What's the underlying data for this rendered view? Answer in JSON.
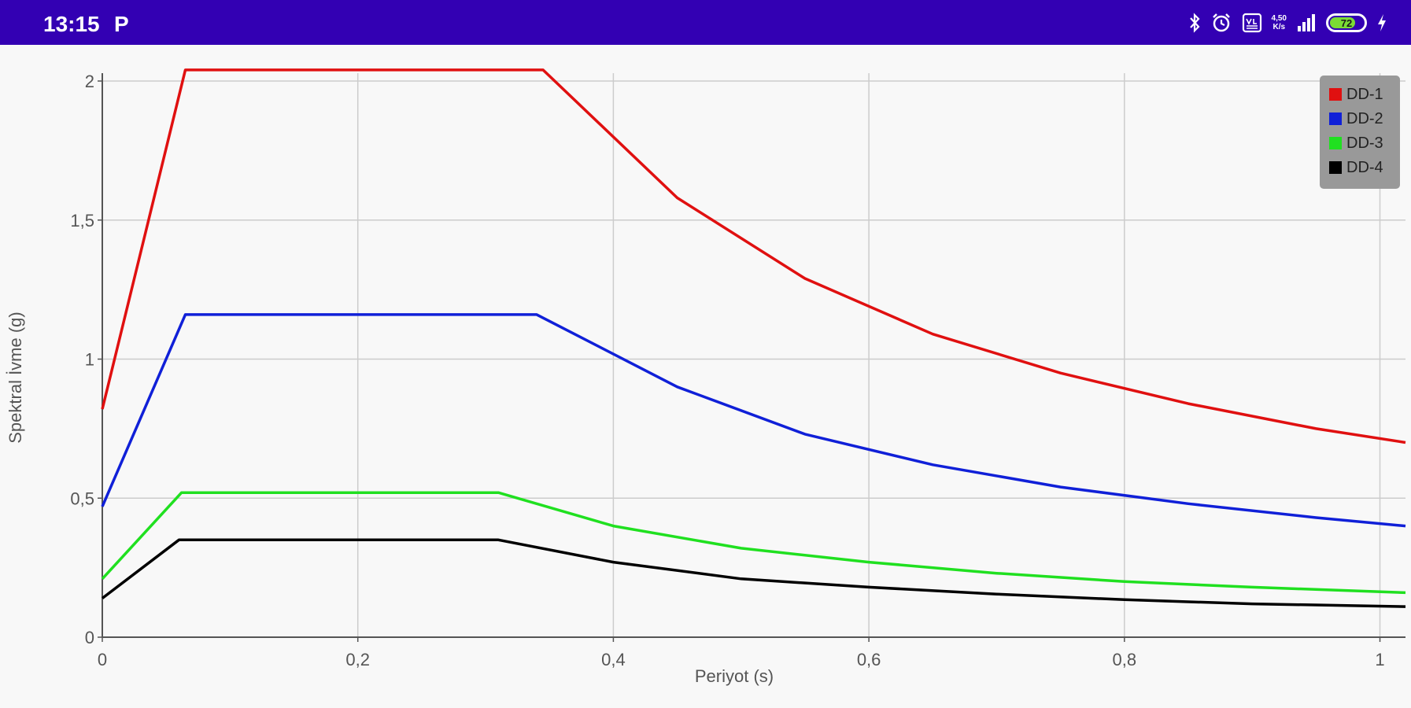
{
  "status_bar": {
    "time": "13:15",
    "app_indicator": "P",
    "network_speed": "4,50\nK/s",
    "battery_level": "72",
    "icons": [
      "bluetooth-icon",
      "alarm-icon",
      "volte-icon",
      "signal-icon",
      "battery-icon",
      "charging-icon"
    ]
  },
  "chart_data": {
    "type": "line",
    "title": "",
    "xlabel": "Periyot (s)",
    "ylabel": "Spektral İvme (g)",
    "xlim": [
      0,
      1.02
    ],
    "ylim": [
      0,
      2.05
    ],
    "x_ticks": [
      0,
      0.2,
      0.4,
      0.6,
      0.8,
      1
    ],
    "x_tick_labels": [
      "0",
      "0,2",
      "0,4",
      "0,6",
      "0,8",
      "1"
    ],
    "y_ticks": [
      0,
      0.5,
      1,
      1.5,
      2
    ],
    "y_tick_labels": [
      "0",
      "0,5",
      "1",
      "1,5",
      "2"
    ],
    "grid": true,
    "legend_position": "top-right",
    "series": [
      {
        "name": "DD-1",
        "color": "#e01010",
        "x": [
          0,
          0.065,
          0.345,
          0.45,
          0.55,
          0.65,
          0.75,
          0.85,
          0.95,
          1.02
        ],
        "y": [
          0.82,
          2.04,
          2.04,
          1.58,
          1.29,
          1.09,
          0.95,
          0.84,
          0.75,
          0.7
        ]
      },
      {
        "name": "DD-2",
        "color": "#1020d8",
        "x": [
          0,
          0.065,
          0.34,
          0.45,
          0.55,
          0.65,
          0.75,
          0.85,
          0.95,
          1.02
        ],
        "y": [
          0.47,
          1.16,
          1.16,
          0.9,
          0.73,
          0.62,
          0.54,
          0.48,
          0.43,
          0.4
        ]
      },
      {
        "name": "DD-3",
        "color": "#20e020",
        "x": [
          0,
          0.062,
          0.31,
          0.4,
          0.5,
          0.6,
          0.7,
          0.8,
          0.9,
          1.02
        ],
        "y": [
          0.21,
          0.52,
          0.52,
          0.4,
          0.32,
          0.27,
          0.23,
          0.2,
          0.18,
          0.16
        ]
      },
      {
        "name": "DD-4",
        "color": "#000000",
        "x": [
          0,
          0.06,
          0.31,
          0.4,
          0.5,
          0.6,
          0.7,
          0.8,
          0.9,
          1.02
        ],
        "y": [
          0.14,
          0.35,
          0.35,
          0.27,
          0.21,
          0.18,
          0.155,
          0.135,
          0.12,
          0.11
        ]
      }
    ]
  }
}
